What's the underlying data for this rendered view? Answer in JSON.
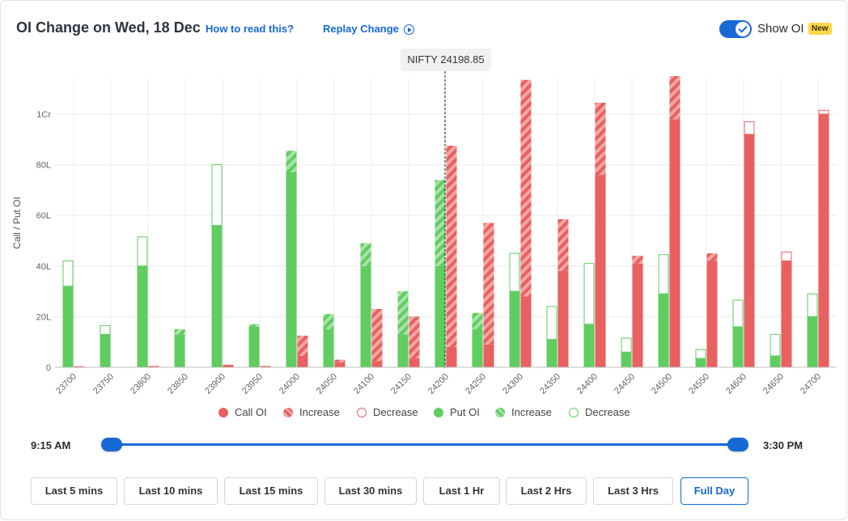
{
  "header": {
    "title": "OI Change on Wed, 18 Dec",
    "how_to_read": "How to read this?",
    "replay": "Replay Change",
    "toggle_label": "Show OI",
    "new_badge": "New"
  },
  "tooltip": {
    "text": "NIFTY 24198.85"
  },
  "chart_data": {
    "type": "bar",
    "title": "OI Change on Wed, 18 Dec",
    "ylabel": "Call / Put OI",
    "xlabel": "",
    "ylim": [
      0,
      1.14
    ],
    "unit": "Cr",
    "y_ticks": [
      {
        "value": 0,
        "label": "0"
      },
      {
        "value": 0.2,
        "label": "20L"
      },
      {
        "value": 0.4,
        "label": "40L"
      },
      {
        "value": 0.6,
        "label": "60L"
      },
      {
        "value": 0.8,
        "label": "80L"
      },
      {
        "value": 1.0,
        "label": "1Cr"
      }
    ],
    "spot_marker": {
      "value": 24198.85,
      "label": "NIFTY 24198.85"
    },
    "categories": [
      "23700",
      "23750",
      "23800",
      "23850",
      "23900",
      "23950",
      "24000",
      "24050",
      "24100",
      "24150",
      "24200",
      "24250",
      "24300",
      "24350",
      "24400",
      "24450",
      "24500",
      "24550",
      "24600",
      "24650",
      "24700"
    ],
    "series": [
      {
        "name": "Put OI",
        "base": [
          0.32,
          0.13,
          0.4,
          0.13,
          0.56,
          0.16,
          0.77,
          0.15,
          0.4,
          0.13,
          0.4,
          0.15,
          0.3,
          0.11,
          0.17,
          0.06,
          0.29,
          0.035,
          0.16,
          0.045,
          0.2
        ],
        "increase": [
          0,
          0,
          0,
          0.02,
          0,
          0.01,
          0.085,
          0.06,
          0.09,
          0.17,
          0.34,
          0.065,
          0,
          0,
          0,
          0,
          0,
          0,
          0,
          0,
          0
        ],
        "decrease": [
          0.1,
          0.035,
          0.115,
          0,
          0.24,
          0,
          0,
          0,
          0,
          0,
          0,
          0,
          0.15,
          0.13,
          0.24,
          0.055,
          0.155,
          0.035,
          0.105,
          0.085,
          0.09
        ]
      },
      {
        "name": "Call OI",
        "base": [
          0.004,
          0,
          0.005,
          0,
          0.01,
          0.005,
          0.045,
          0.02,
          0.025,
          0.035,
          0.08,
          0.09,
          0.28,
          0.38,
          0.76,
          0.41,
          0.98,
          0.42,
          0.92,
          0.42,
          1.0
        ],
        "increase": [
          0,
          0,
          0,
          0,
          0,
          0,
          0.08,
          0.01,
          0.205,
          0.165,
          0.795,
          0.48,
          0.855,
          0.205,
          0.285,
          0.03,
          0.17,
          0.03,
          0,
          0,
          0
        ],
        "decrease": [
          0,
          0,
          0,
          0,
          0,
          0,
          0,
          0,
          0,
          0,
          0,
          0,
          0,
          0,
          0,
          0,
          0,
          0,
          0.05,
          0.035,
          0.015
        ]
      }
    ],
    "colors": {
      "call": "#e8605f",
      "call_light": "#f3a7a4",
      "put": "#5fcd5f",
      "put_light": "#a9e3a8"
    }
  },
  "legend": [
    {
      "label": "Call OI",
      "style": "call-solid"
    },
    {
      "label": "Increase",
      "style": "call-hatch"
    },
    {
      "label": "Decrease",
      "style": "call-outline"
    },
    {
      "label": "Put OI",
      "style": "put-solid"
    },
    {
      "label": "Increase",
      "style": "put-hatch"
    },
    {
      "label": "Decrease",
      "style": "put-outline"
    }
  ],
  "slider": {
    "start": "9:15 AM",
    "end": "3:30 PM"
  },
  "ranges": [
    "Last 5 mins",
    "Last 10 mins",
    "Last 15 mins",
    "Last 30 mins",
    "Last 1 Hr",
    "Last 2 Hrs",
    "Last 3 Hrs",
    "Full Day"
  ],
  "active_range": "Full Day"
}
